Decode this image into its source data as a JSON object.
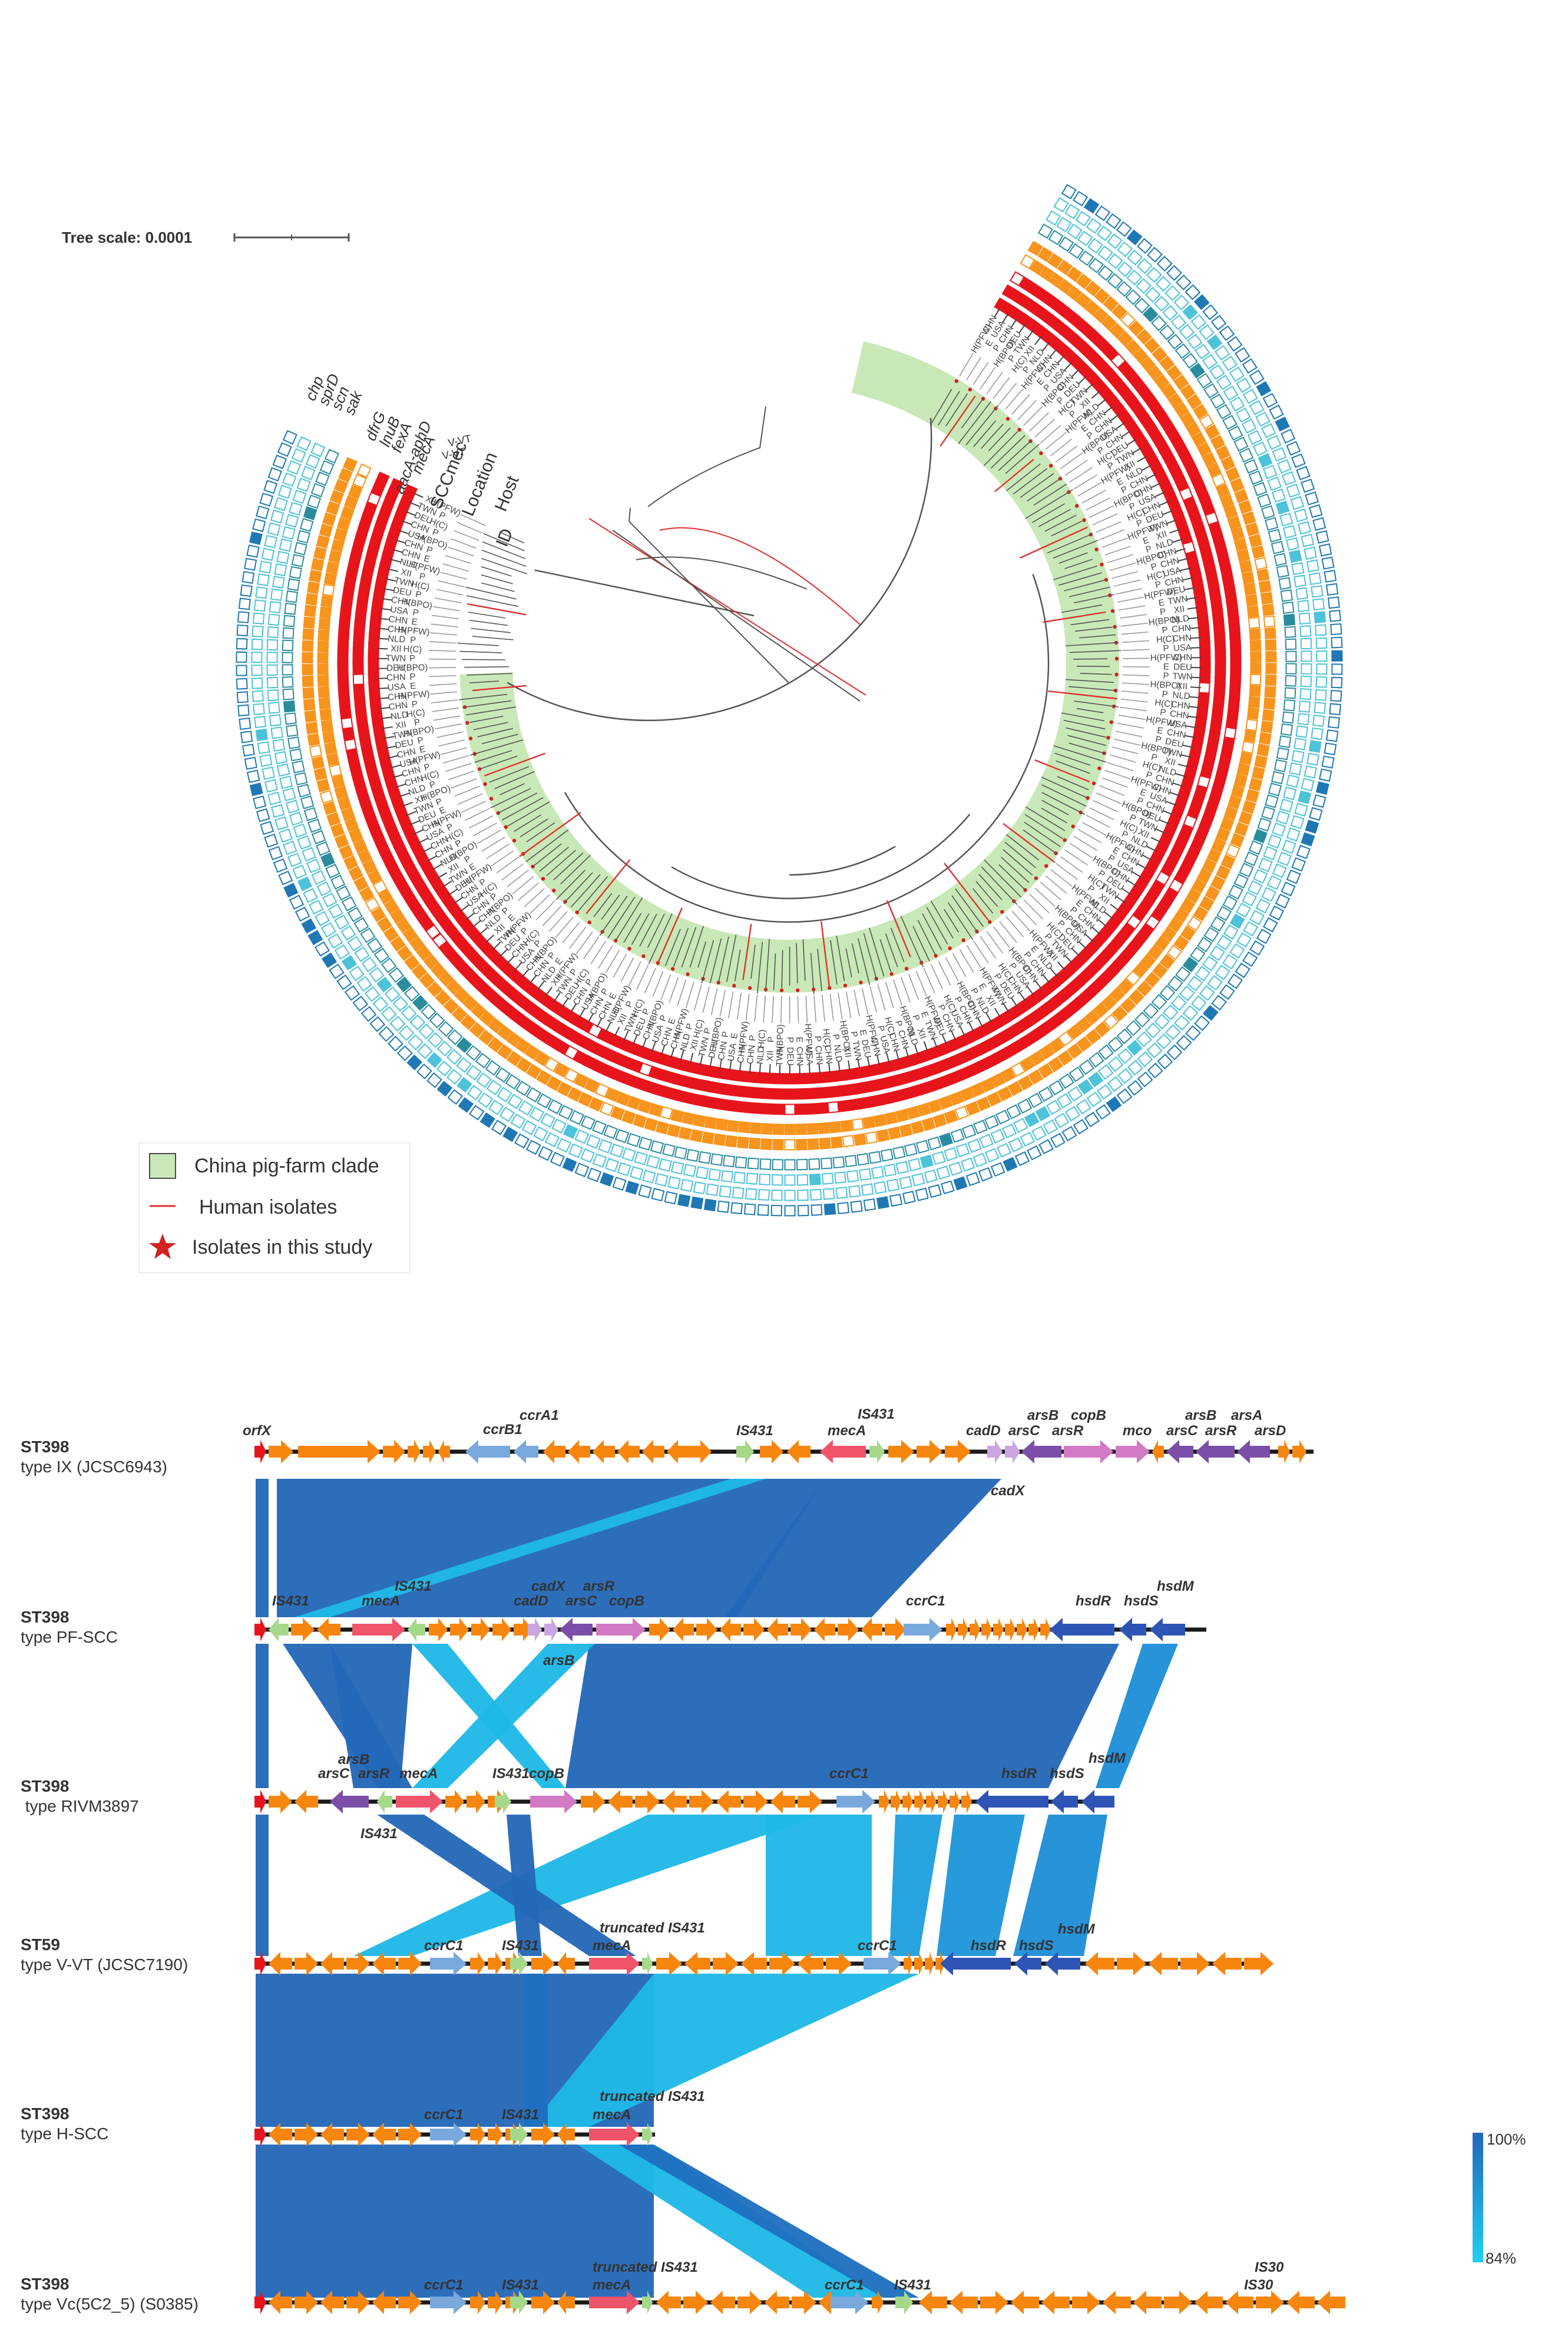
{
  "tree": {
    "scale_label": "Tree scale: 0.0001",
    "ring_labels": [
      "ID",
      "Host",
      "Location",
      "SCCmec",
      "mecA",
      "aacA-aphD",
      "fexA",
      "lnuB",
      "dfrG",
      "sak",
      "scn",
      "sprD",
      "chp"
    ],
    "scc_label_samples": [
      "V-VT",
      "V-VT"
    ],
    "legend": [
      {
        "label": "China pig-farm clade",
        "kind": "box",
        "color": "#c9e8b7"
      },
      {
        "label": "Human isolates",
        "kind": "line",
        "color": "#e03030"
      },
      {
        "label": "Isolates in this study",
        "kind": "star",
        "color": "#d42020"
      }
    ],
    "colors": {
      "clade": "#c9e8b7",
      "branch": "#555555",
      "human": "#e03030",
      "star": "#d42020",
      "ring_red": "#e8141c",
      "ring_orange": "#f7941d",
      "ring_blue": "#1f78b4",
      "ring_cyan": "#4dc3d9",
      "ring_teal": "#2b8c9e"
    },
    "location_values": [
      "CHN",
      "XII",
      "CHN",
      "DEU",
      "NLD",
      "USA",
      "TWN",
      "CHN"
    ],
    "host_values": [
      "P",
      "H(PFW)",
      "H(C)",
      "H(BPO)",
      "E",
      "P",
      "P"
    ]
  },
  "alignment": {
    "tracks": [
      {
        "line1": "ST398",
        "line2": "type IX (JCSC6943)",
        "genes_top": [
          "orfX",
          "ccrB1",
          "ccrA1",
          "IS431",
          "mecA",
          "IS431",
          "cadD",
          "arsC",
          "arsB",
          "arsR",
          "copB",
          "mco",
          "arsC",
          "arsB",
          "arsR",
          "arsA",
          "arsD"
        ],
        "genes_bottom": [
          "cadX"
        ]
      },
      {
        "line1": "ST398",
        "line2": "type PF-SCC",
        "genes_top": [
          "IS431",
          "mecA",
          "IS431",
          "cadD",
          "cadX",
          "arsC",
          "arsR",
          "copB",
          "ccrC1",
          "hsdR",
          "hsdS",
          "hsdM"
        ],
        "genes_bottom": [
          "arsB"
        ]
      },
      {
        "line1": "ST398",
        "line2": " type RIVM3897",
        "genes_top": [
          "arsC",
          "arsB",
          "arsR",
          "mecA",
          "IS431",
          "copB",
          "ccrC1",
          "hsdR",
          "hsdS",
          "hsdM"
        ],
        "genes_bottom": [
          "IS431"
        ]
      },
      {
        "line1": "ST59",
        "line2": "type V-VT (JCSC7190)",
        "genes_top": [
          "ccrC1",
          "IS431",
          "mecA",
          "truncated IS431",
          "ccrC1",
          "hsdR",
          "hsdS",
          "hsdM"
        ],
        "genes_bottom": []
      },
      {
        "line1": "ST398",
        "line2": "type H-SCC",
        "genes_top": [
          "ccrC1",
          "IS431",
          "mecA",
          "truncated IS431"
        ],
        "genes_bottom": []
      },
      {
        "line1": "ST398",
        "line2": "type Vc(5C2_5) (S0385)",
        "genes_top": [
          "ccrC1",
          "IS431",
          "mecA",
          "truncated IS431",
          "ccrC1",
          "IS431",
          "IS30",
          "IS30"
        ],
        "genes_bottom": []
      }
    ],
    "identity_scale": {
      "max": "100%",
      "min": "84%"
    },
    "gene_colors": {
      "orf": "#f7860f",
      "orfX": "#e8141c",
      "mecA": "#f0546a",
      "is431": "#a6d88a",
      "ccr": "#79a9dc",
      "cad": "#c9a6e0",
      "ars": "#7b4fa8",
      "cop": "#d27ac4",
      "hsd": "#2e55b5",
      "link_dark": "#2468b8",
      "link_light": "#1fb8e6"
    }
  }
}
